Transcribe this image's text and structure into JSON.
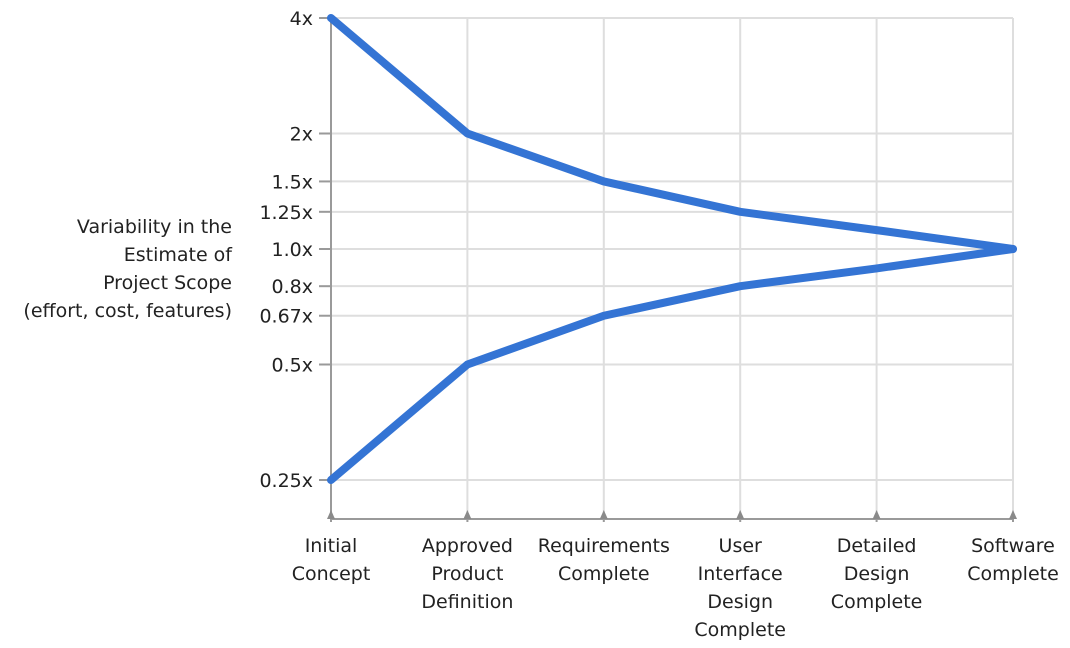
{
  "chart_data": {
    "type": "line",
    "title": "",
    "xlabel": "",
    "ylabel": [
      "Variability in the",
      "Estimate of",
      "Project Scope",
      "(effort, cost, features)"
    ],
    "y_scale": "log",
    "yticks": [
      {
        "value": 4,
        "label": "4x"
      },
      {
        "value": 2,
        "label": "2x"
      },
      {
        "value": 1.5,
        "label": "1.5x"
      },
      {
        "value": 1.25,
        "label": "1.25x"
      },
      {
        "value": 1.0,
        "label": "1.0x"
      },
      {
        "value": 0.8,
        "label": "0.8x"
      },
      {
        "value": 0.67,
        "label": "0.67x"
      },
      {
        "value": 0.5,
        "label": "0.5x"
      },
      {
        "value": 0.25,
        "label": "0.25x"
      }
    ],
    "categories": [
      [
        "Initial",
        "Concept"
      ],
      [
        "Approved",
        "Product",
        "Definition"
      ],
      [
        "Requirements",
        "Complete"
      ],
      [
        "User",
        "Interface",
        "Design",
        "Complete"
      ],
      [
        "Detailed",
        "Design",
        "Complete"
      ],
      [
        "Software",
        "Complete"
      ]
    ],
    "series": [
      {
        "values": [
          4,
          2,
          1.5,
          1.25,
          1.12,
          1.0
        ]
      },
      {
        "values": [
          0.25,
          0.5,
          0.67,
          0.8,
          0.89,
          1.0
        ]
      }
    ],
    "color": "#3474d4",
    "grid": true,
    "legend": "none"
  }
}
